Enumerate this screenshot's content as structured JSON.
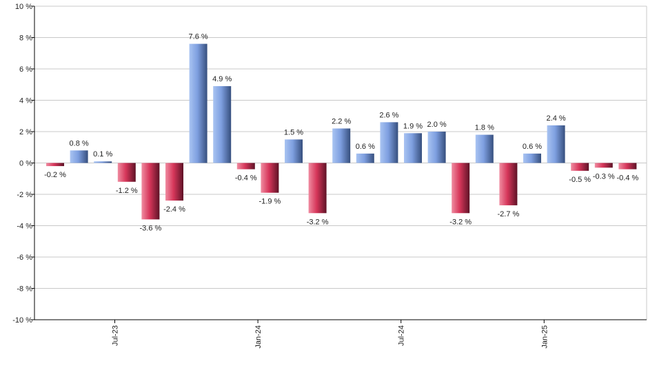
{
  "chart_data": {
    "type": "bar",
    "title": "",
    "xlabel": "",
    "ylabel": "",
    "ylim": [
      -10,
      10
    ],
    "yticks": [
      {
        "value": 10,
        "label": "10 %"
      },
      {
        "value": 8,
        "label": "8 %"
      },
      {
        "value": 6,
        "label": "6 %"
      },
      {
        "value": 4,
        "label": "4 %"
      },
      {
        "value": 2,
        "label": "2 %"
      },
      {
        "value": 0,
        "label": "0 %"
      },
      {
        "value": -2,
        "label": "-2 %"
      },
      {
        "value": -4,
        "label": "-4 %"
      },
      {
        "value": -6,
        "label": "-6 %"
      },
      {
        "value": -8,
        "label": "-8 %"
      },
      {
        "value": -10,
        "label": "-10 %"
      }
    ],
    "xticks": [
      {
        "index": 2.5,
        "label": "Jul-23"
      },
      {
        "index": 8.5,
        "label": "Jan-24"
      },
      {
        "index": 14.5,
        "label": "Jul-24"
      },
      {
        "index": 20.5,
        "label": "Jan-25"
      }
    ],
    "values": [
      -0.2,
      0.8,
      0.1,
      -1.2,
      -3.6,
      -2.4,
      7.6,
      4.9,
      -0.4,
      -1.9,
      1.5,
      -3.2,
      2.2,
      0.6,
      2.6,
      1.9,
      2.0,
      -3.2,
      1.8,
      -2.7,
      0.6,
      2.4,
      -0.5,
      -0.3,
      -0.4
    ],
    "labels": [
      "-0.2 %",
      "0.8 %",
      "0.1 %",
      "-1.2 %",
      "-3.6 %",
      "-2.4 %",
      "7.6 %",
      "4.9 %",
      "-0.4 %",
      "-1.9 %",
      "1.5 %",
      "-3.2 %",
      "2.2 %",
      "0.6 %",
      "2.6 %",
      "1.9 %",
      "2.0 %",
      "-3.2 %",
      "1.8 %",
      "-2.7 %",
      "0.6 %",
      "2.4 %",
      "-0.5 %",
      "-0.3 %",
      "-0.4 %"
    ],
    "grid": true,
    "legend": "none",
    "colors": {
      "positive_light": "#a9c4f2",
      "positive_mid": "#7e9fe0",
      "positive_dark": "#364f7e",
      "negative_light": "#f08ca1",
      "negative_mid": "#d6365a",
      "negative_dark": "#5e1226",
      "grid": "#c8c8c8",
      "axis": "#000000"
    }
  }
}
